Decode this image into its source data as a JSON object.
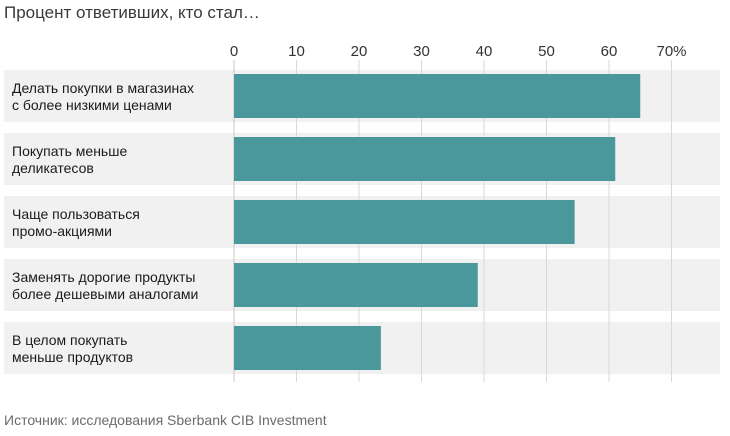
{
  "title": "Процент ответивших, кто стал…",
  "source": "Источник: исследования Sberbank CIB Investment",
  "colors": {
    "bar": "#4a989b",
    "row_background": "#f1f1f1",
    "gridline": "#d9d9d9"
  },
  "chart_data": {
    "type": "bar",
    "orientation": "horizontal",
    "categories": [
      [
        "Делать покупки в магазинах",
        "с более низкими ценами"
      ],
      [
        "Покупать меньше",
        "деликатесов"
      ],
      [
        "Чаще пользоваться",
        "промо-акциями"
      ],
      [
        "Заменять дорогие продукты",
        "более дешевыми аналогами"
      ],
      [
        "В целом покупать",
        "меньше продуктов"
      ]
    ],
    "values": [
      65,
      61,
      54.5,
      39,
      23.5
    ],
    "xlim": [
      0,
      70
    ],
    "ticks": [
      0,
      10,
      20,
      30,
      40,
      50,
      60,
      70
    ],
    "tick_labels": [
      "0",
      "10",
      "20",
      "30",
      "40",
      "50",
      "60",
      "70%"
    ],
    "axis_position": "top",
    "grid": true
  }
}
